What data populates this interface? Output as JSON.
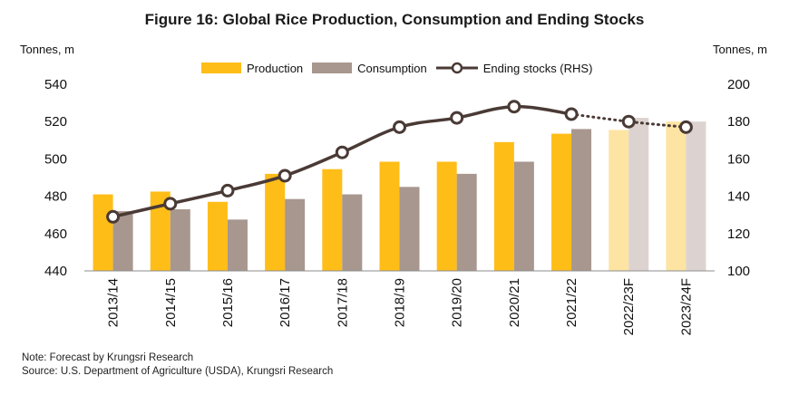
{
  "colors": {
    "production": "#FFBD18",
    "consumption": "#A8978F",
    "production_forecast": "#FDE4A3",
    "consumption_forecast": "#DCD3D0",
    "ending_stocks_line": "#4A3A35",
    "axis": "#555555"
  },
  "chart_data": {
    "type": "bar",
    "title": "Figure 16: Global Rice Production, Consumption and Ending Stocks",
    "ylabel": "Tonnes, m",
    "y2label": "Tonnes, m",
    "ylim": [
      440,
      540
    ],
    "y2lim": [
      100,
      200
    ],
    "yticks": [
      "440",
      "460",
      "480",
      "500",
      "520",
      "540"
    ],
    "y2ticks": [
      "100",
      "120",
      "140",
      "160",
      "180",
      "200"
    ],
    "categories": [
      "2013/14",
      "2014/15",
      "2015/16",
      "2016/17",
      "2017/18",
      "2018/19",
      "2019/20",
      "2020/21",
      "2021/22",
      "2022/23F",
      "2023/24F"
    ],
    "forecast_categories": [
      "2022/23F",
      "2023/24F"
    ],
    "series": [
      {
        "name": "Production",
        "type": "bar",
        "axis": "left",
        "values": [
          481,
          482.5,
          477,
          492,
          494.5,
          498.5,
          498.5,
          509,
          513.5,
          515.5,
          520
        ]
      },
      {
        "name": "Consumption",
        "type": "bar",
        "axis": "left",
        "values": [
          472,
          473,
          467.5,
          478.5,
          481,
          485,
          492,
          498.5,
          516,
          522,
          520
        ]
      },
      {
        "name": "Ending stocks (RHS)",
        "type": "line",
        "axis": "right",
        "values": [
          129,
          136,
          143,
          151,
          163.5,
          177,
          182,
          188,
          184,
          180,
          177
        ]
      }
    ],
    "legend": [
      "Production",
      "Consumption",
      "Ending stocks (RHS)"
    ],
    "legend_position": "top"
  },
  "notes": {
    "line1": "Note: Forecast by Krungsri Research",
    "line2": "Source: U.S. Department of Agriculture (USDA), Krungsri Research"
  }
}
